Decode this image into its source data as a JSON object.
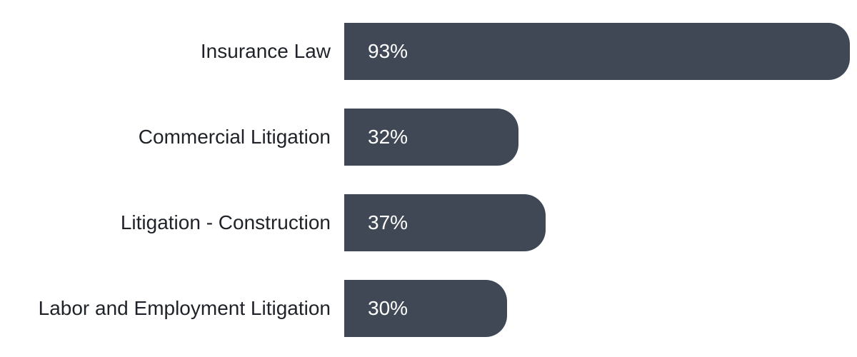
{
  "chart_data": {
    "type": "bar",
    "orientation": "horizontal",
    "categories": [
      "Insurance Law",
      "Commercial Litigation",
      "Litigation - Construction",
      "Labor and Employment Litigation"
    ],
    "values": [
      93,
      32,
      37,
      30
    ],
    "value_labels": [
      "93%",
      "32%",
      "37%",
      "30%"
    ],
    "unit": "%",
    "xlim": [
      0,
      100
    ],
    "grid": false,
    "legend": "none",
    "bar_color": "#3f4854",
    "label_color": "#ffffff"
  }
}
